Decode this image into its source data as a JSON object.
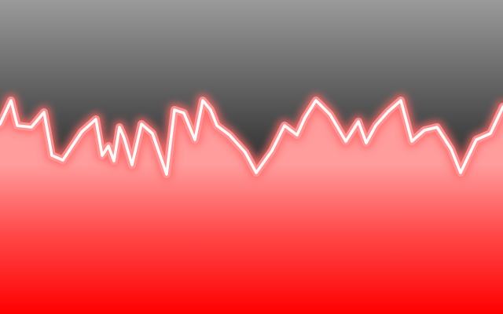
{
  "wallpaper": {
    "description_colors": {
      "sky_top": "#9a9a9a",
      "sky_bottom": "#0e0e0e",
      "fill_top": "#ff9c9c",
      "fill_mid": "#ff4a4a",
      "fill_bottom": "#ff0000",
      "ridge_core": "#ffffff",
      "ridge_glow": "#ff6a6a"
    }
  }
}
